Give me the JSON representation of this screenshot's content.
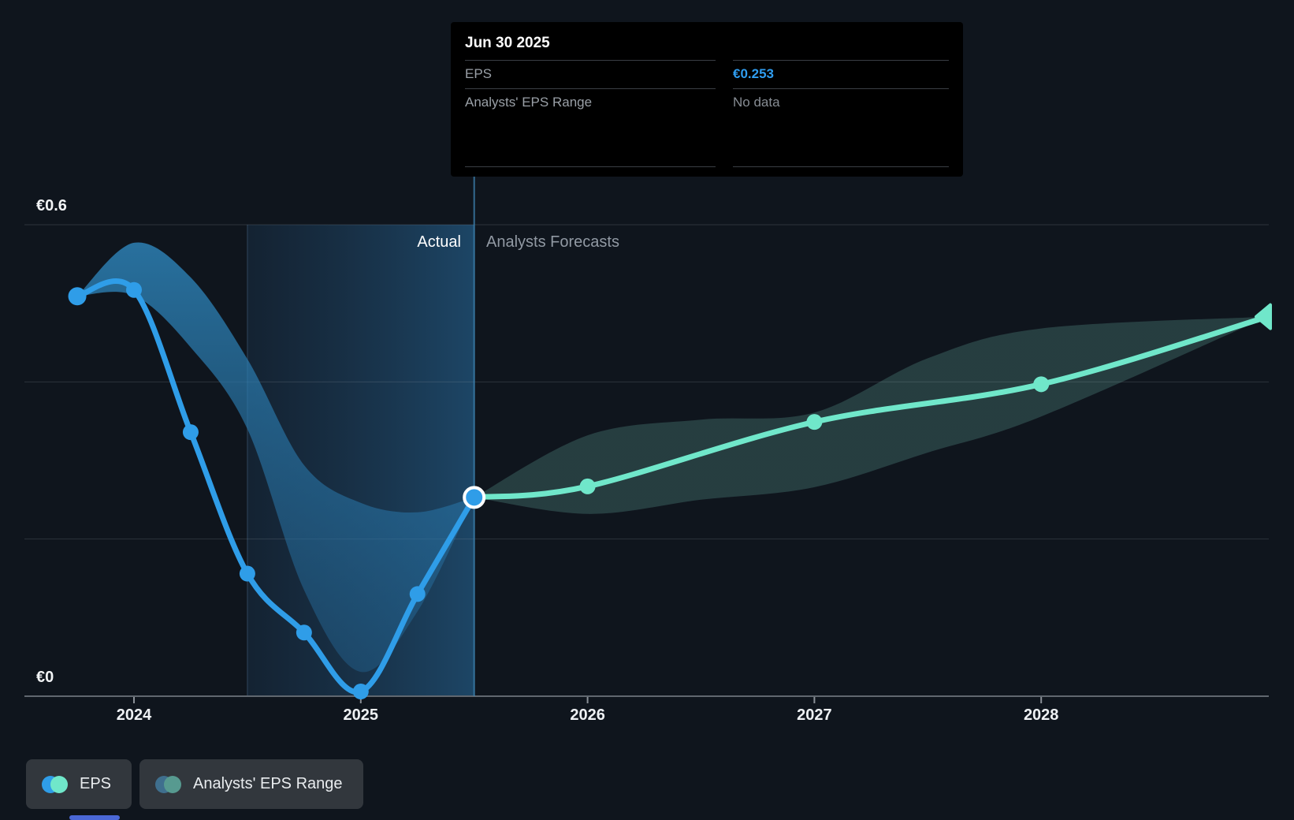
{
  "tooltip": {
    "title": "Jun 30 2025",
    "rows": [
      {
        "label": "EPS",
        "value": "€0.253",
        "style": "accent"
      },
      {
        "label": "Analysts' EPS Range",
        "value": "No data",
        "style": "muted"
      }
    ]
  },
  "labels": {
    "actual": "Actual",
    "forecast": "Analysts Forecasts",
    "y_top": "€0.6",
    "y_bottom": "€0"
  },
  "legend": [
    {
      "label": "EPS",
      "dot1": "#2f9de8",
      "dot2": "#70e7ca"
    },
    {
      "label": "Analysts' EPS Range",
      "dot1": "#3f6f8e",
      "dot2": "#579a90"
    }
  ],
  "colors": {
    "background": "#0f151d",
    "accent_blue": "#2f9de8",
    "accent_teal": "#70e7ca",
    "tooltip_value_blue": "#2f9df0",
    "muted_text": "#9aa0a7",
    "gridline": "rgba(150,158,168,0.22)",
    "axis_line": "#60676f",
    "divider_line": "#3f88b8"
  },
  "chart_data": {
    "type": "line",
    "title": "EPS actual vs analysts forecast",
    "currency": "EUR",
    "ylim": [
      0,
      0.6
    ],
    "y_gridline_values": [
      0.6,
      0.4,
      0.2
    ],
    "y_tick_labels": [
      {
        "value": 0.6,
        "label": "€0.6"
      },
      {
        "value": 0,
        "label": "€0"
      }
    ],
    "x_ticks": [
      {
        "label": "2024",
        "year": 2024
      },
      {
        "label": "2025",
        "year": 2025
      },
      {
        "label": "2026",
        "year": 2026
      },
      {
        "label": "2027",
        "year": 2027
      },
      {
        "label": "2028",
        "year": 2028
      }
    ],
    "x_range": [
      2023.52,
      2029.0
    ],
    "divider_x": 2025.5,
    "divider_date": "Jun 30 2025",
    "highlight_span": [
      2024.5,
      2025.5
    ],
    "series": [
      {
        "name": "EPS",
        "segment": "actual",
        "color": "#2f9de8",
        "x": [
          2023.75,
          2024.0,
          2024.25,
          2024.5,
          2024.75,
          2025.0,
          2025.25,
          2025.5
        ],
        "y": [
          0.509,
          0.517,
          0.336,
          0.156,
          0.081,
          0.006,
          0.13,
          0.253
        ]
      },
      {
        "name": "EPS (analysts forecast)",
        "segment": "forecast",
        "color": "#70e7ca",
        "x": [
          2025.5,
          2026.0,
          2027.0,
          2028.0,
          2029.0
        ],
        "y": [
          0.253,
          0.267,
          0.349,
          0.397,
          0.483
        ]
      }
    ],
    "bands": [
      {
        "name": "Analysts' EPS Range (actual period)",
        "fill_top": "rgba(47,138,194,0.78)",
        "fill_bottom": "rgba(36,104,152,0.42)",
        "x": [
          2023.75,
          2024.0,
          2024.25,
          2024.5,
          2024.75,
          2025.0,
          2025.25,
          2025.5
        ],
        "hi": [
          0.509,
          0.577,
          0.533,
          0.429,
          0.294,
          0.246,
          0.234,
          0.253
        ],
        "lo": [
          0.509,
          0.51,
          0.444,
          0.34,
          0.135,
          0.031,
          0.108,
          0.253
        ]
      },
      {
        "name": "Analysts' EPS Range (forecast)",
        "fill_top": "rgba(120,205,190,0.22)",
        "fill_bottom": "rgba(120,205,190,0.22)",
        "x": [
          2025.5,
          2026.0,
          2026.5,
          2027.0,
          2027.5,
          2028.0,
          2029.0
        ],
        "hi": [
          0.253,
          0.332,
          0.352,
          0.361,
          0.43,
          0.468,
          0.483
        ],
        "lo": [
          0.253,
          0.232,
          0.25,
          0.266,
          0.31,
          0.356,
          0.483
        ]
      }
    ],
    "legend_position": "bottom-left",
    "grid": "horizontal-only"
  }
}
